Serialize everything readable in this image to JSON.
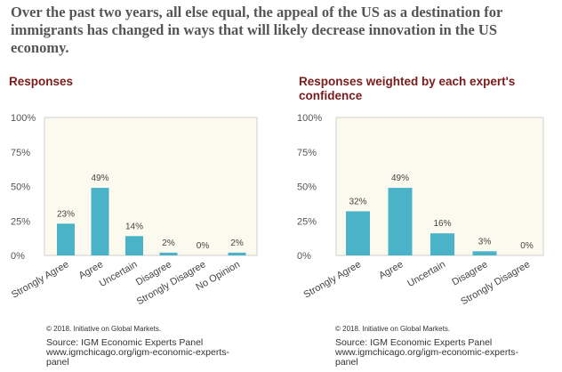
{
  "headline": "Over the past two years, all else equal, the appeal of the US as a destination for immigrants has changed in ways that will likely decrease innovation in the US economy.",
  "colors": {
    "bar": "#4bb3c8",
    "plot_background": "#fcf9ef",
    "title": "#7a1c1c",
    "headline": "#555555"
  },
  "chart_data": [
    {
      "type": "bar",
      "title": "Responses",
      "categories": [
        "Strongly Agree",
        "Agree",
        "Uncertain",
        "Disagree",
        "Strongly Disagree",
        "No Opinion"
      ],
      "values": [
        23,
        49,
        14,
        2,
        0,
        2
      ],
      "value_labels": [
        "23%",
        "49%",
        "14%",
        "2%",
        "0%",
        "2%"
      ],
      "ylim": [
        0,
        100
      ],
      "yticks": [
        "0%",
        "25%",
        "50%",
        "75%",
        "100%"
      ],
      "xlabel": "",
      "ylabel": "",
      "legend": "none",
      "grid": false
    },
    {
      "type": "bar",
      "title": "Responses weighted by each expert's confidence",
      "categories": [
        "Strongly Agree",
        "Agree",
        "Uncertain",
        "Disagree",
        "Strongly Disagree"
      ],
      "values": [
        32,
        49,
        16,
        3,
        0
      ],
      "value_labels": [
        "32%",
        "49%",
        "16%",
        "3%",
        "0%"
      ],
      "ylim": [
        0,
        100
      ],
      "yticks": [
        "0%",
        "25%",
        "50%",
        "75%",
        "100%"
      ],
      "xlabel": "",
      "ylabel": "",
      "legend": "none",
      "grid": false
    }
  ],
  "footer": {
    "copyright": "© 2018. Initiative on Global Markets.",
    "source_label": "Source: IGM Economic Experts Panel",
    "source_url_1": "www.igmchicago.org/igm-economic-experts-",
    "source_url_2": "panel"
  }
}
